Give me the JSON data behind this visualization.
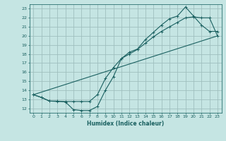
{
  "xlabel": "Humidex (Indice chaleur)",
  "bg_color": "#c5e5e3",
  "grid_color": "#9fbfbe",
  "line_color": "#1a6060",
  "spine_color": "#2a7070",
  "xlim": [
    -0.5,
    23.5
  ],
  "ylim": [
    11.5,
    23.5
  ],
  "xticks": [
    0,
    1,
    2,
    3,
    4,
    5,
    6,
    7,
    8,
    9,
    10,
    11,
    12,
    13,
    14,
    15,
    16,
    17,
    18,
    19,
    20,
    21,
    22,
    23
  ],
  "yticks": [
    12,
    13,
    14,
    15,
    16,
    17,
    18,
    19,
    20,
    21,
    22,
    23
  ],
  "line1_x": [
    0,
    1,
    2,
    3,
    4,
    5,
    6,
    7,
    8,
    9,
    10,
    11,
    12,
    13,
    14,
    15,
    16,
    17,
    18,
    19,
    20,
    21,
    22,
    23
  ],
  "line1_y": [
    13.5,
    13.2,
    12.8,
    12.8,
    12.7,
    11.85,
    11.75,
    11.75,
    12.2,
    14.0,
    15.5,
    17.5,
    18.2,
    18.55,
    19.6,
    20.4,
    21.2,
    21.9,
    22.2,
    23.2,
    22.2,
    21.2,
    20.5,
    20.5
  ],
  "line2_x": [
    0,
    1,
    2,
    3,
    4,
    5,
    6,
    7,
    8,
    9,
    10,
    11,
    12,
    13,
    14,
    15,
    16,
    17,
    18,
    19,
    20,
    21,
    22,
    23
  ],
  "line2_y": [
    13.5,
    13.2,
    12.8,
    12.75,
    12.75,
    12.75,
    12.75,
    12.75,
    13.5,
    15.3,
    16.5,
    17.5,
    18.0,
    18.5,
    19.2,
    19.9,
    20.5,
    21.0,
    21.5,
    22.0,
    22.1,
    22.0,
    22.0,
    20.0
  ],
  "line3_x": [
    0,
    23
  ],
  "line3_y": [
    13.5,
    20.0
  ]
}
